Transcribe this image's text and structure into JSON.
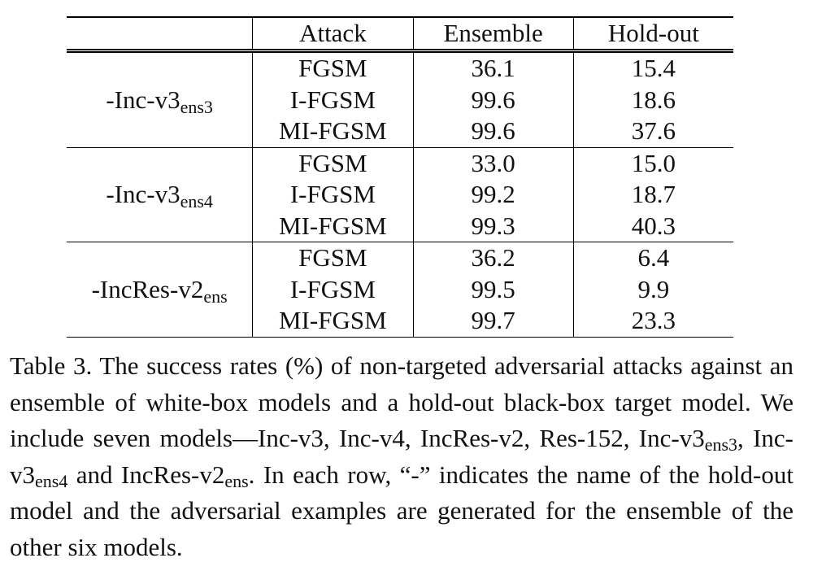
{
  "table": {
    "headers": [
      "",
      "Attack",
      "Ensemble",
      "Hold-out"
    ],
    "groups": [
      {
        "model_base": "-Inc-v3",
        "model_sub": "ens3",
        "rows": [
          {
            "attack": "FGSM",
            "ensemble": "36.1",
            "holdout": "15.4",
            "ensemble_bold": false,
            "holdout_bold": false
          },
          {
            "attack": "I-FGSM",
            "ensemble": "99.6",
            "holdout": "18.6",
            "ensemble_bold": true,
            "holdout_bold": false
          },
          {
            "attack": "MI-FGSM",
            "ensemble": "99.6",
            "holdout": "37.6",
            "ensemble_bold": true,
            "holdout_bold": true
          }
        ]
      },
      {
        "model_base": "-Inc-v3",
        "model_sub": "ens4",
        "rows": [
          {
            "attack": "FGSM",
            "ensemble": "33.0",
            "holdout": "15.0",
            "ensemble_bold": false,
            "holdout_bold": false
          },
          {
            "attack": "I-FGSM",
            "ensemble": "99.2",
            "holdout": "18.7",
            "ensemble_bold": false,
            "holdout_bold": false
          },
          {
            "attack": "MI-FGSM",
            "ensemble": "99.3",
            "holdout": "40.3",
            "ensemble_bold": true,
            "holdout_bold": true
          }
        ]
      },
      {
        "model_base": "-IncRes-v2",
        "model_sub": "ens",
        "rows": [
          {
            "attack": "FGSM",
            "ensemble": "36.2",
            "holdout": "6.4",
            "ensemble_bold": false,
            "holdout_bold": false
          },
          {
            "attack": "I-FGSM",
            "ensemble": "99.5",
            "holdout": "9.9",
            "ensemble_bold": false,
            "holdout_bold": false
          },
          {
            "attack": "MI-FGSM",
            "ensemble": "99.7",
            "holdout": "23.3",
            "ensemble_bold": true,
            "holdout_bold": true
          }
        ]
      }
    ]
  },
  "caption": {
    "part1": "Table 3. The success rates (%) of non-targeted adversarial attacks against an ensemble of white-box models and a hold-out black-box target model. We include seven models—Inc-v3, Inc-v4, IncRes-v2, Res-152, Inc-v3",
    "sub1": "ens3",
    "part2": ", Inc-v3",
    "sub2": "ens4",
    "part3": " and IncRes-v2",
    "sub3": "ens",
    "part4": ". In each row, “-” indicates the name of the hold-out model and the adversarial examples are generated for the ensemble of the other six models."
  }
}
